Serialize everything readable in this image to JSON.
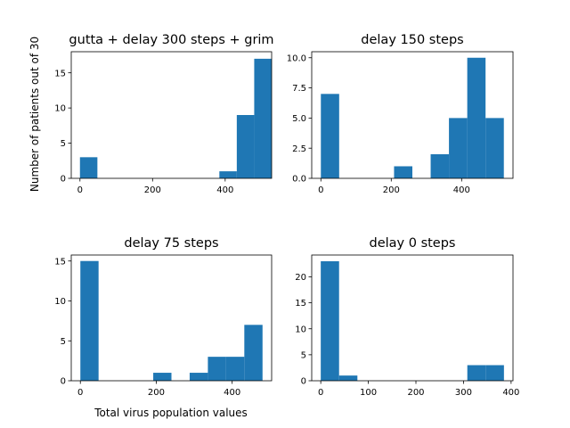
{
  "figure": {
    "ylabel": "Number of patients out of 30",
    "xlabel": "Total virus population values"
  },
  "chart_data": [
    {
      "type": "bar",
      "title": "gutta + delay 300 steps + grim",
      "bar_color": "#1f77b4",
      "bins": [
        {
          "start": 0,
          "end": 48,
          "count": 3
        },
        {
          "start": 48,
          "end": 96,
          "count": 0
        },
        {
          "start": 96,
          "end": 144,
          "count": 0
        },
        {
          "start": 144,
          "end": 192,
          "count": 0
        },
        {
          "start": 192,
          "end": 240,
          "count": 0
        },
        {
          "start": 240,
          "end": 288,
          "count": 0
        },
        {
          "start": 288,
          "end": 336,
          "count": 0
        },
        {
          "start": 336,
          "end": 384,
          "count": 0
        },
        {
          "start": 384,
          "end": 432,
          "count": 1
        },
        {
          "start": 432,
          "end": 480,
          "count": 9
        },
        {
          "start": 480,
          "end": 528,
          "count": 17
        }
      ],
      "xlim": [
        -24,
        528
      ],
      "ylim": [
        0,
        18
      ],
      "xticks": [
        0,
        200,
        400
      ],
      "yticks": [
        0,
        5,
        10,
        15
      ],
      "ytick_labels": [
        "0",
        "5",
        "10",
        "15"
      ]
    },
    {
      "type": "bar",
      "title": "delay 150 steps",
      "bar_color": "#1f77b4",
      "bins": [
        {
          "start": 0,
          "end": 52,
          "count": 7
        },
        {
          "start": 52,
          "end": 104,
          "count": 0
        },
        {
          "start": 104,
          "end": 156,
          "count": 0
        },
        {
          "start": 156,
          "end": 208,
          "count": 0
        },
        {
          "start": 208,
          "end": 260,
          "count": 1
        },
        {
          "start": 260,
          "end": 312,
          "count": 0
        },
        {
          "start": 312,
          "end": 364,
          "count": 2
        },
        {
          "start": 364,
          "end": 416,
          "count": 5
        },
        {
          "start": 416,
          "end": 468,
          "count": 10
        },
        {
          "start": 468,
          "end": 520,
          "count": 5
        }
      ],
      "xlim": [
        -26,
        546
      ],
      "ylim": [
        0,
        10.5
      ],
      "xticks": [
        0,
        200,
        400
      ],
      "yticks": [
        0,
        2.5,
        5,
        7.5,
        10
      ],
      "ytick_labels": [
        "0.0",
        "2.5",
        "5.0",
        "7.5",
        "10.0"
      ]
    },
    {
      "type": "bar",
      "title": "delay 75 steps",
      "bar_color": "#1f77b4",
      "bins": [
        {
          "start": 0,
          "end": 48,
          "count": 15
        },
        {
          "start": 48,
          "end": 96,
          "count": 0
        },
        {
          "start": 96,
          "end": 144,
          "count": 0
        },
        {
          "start": 144,
          "end": 192,
          "count": 0
        },
        {
          "start": 192,
          "end": 240,
          "count": 1
        },
        {
          "start": 240,
          "end": 288,
          "count": 0
        },
        {
          "start": 288,
          "end": 336,
          "count": 1
        },
        {
          "start": 336,
          "end": 384,
          "count": 3
        },
        {
          "start": 384,
          "end": 432,
          "count": 3
        },
        {
          "start": 432,
          "end": 480,
          "count": 7
        }
      ],
      "xlim": [
        -24,
        504
      ],
      "ylim": [
        0,
        15.75
      ],
      "xticks": [
        0,
        200,
        400
      ],
      "yticks": [
        0,
        5,
        10,
        15
      ],
      "ytick_labels": [
        "0",
        "5",
        "10",
        "15"
      ]
    },
    {
      "type": "bar",
      "title": "delay 0 steps",
      "bar_color": "#1f77b4",
      "bins": [
        {
          "start": 0,
          "end": 38.5,
          "count": 23
        },
        {
          "start": 38.5,
          "end": 77,
          "count": 1
        },
        {
          "start": 77,
          "end": 115.5,
          "count": 0
        },
        {
          "start": 115.5,
          "end": 154,
          "count": 0
        },
        {
          "start": 154,
          "end": 192.5,
          "count": 0
        },
        {
          "start": 192.5,
          "end": 231,
          "count": 0
        },
        {
          "start": 231,
          "end": 269.5,
          "count": 0
        },
        {
          "start": 269.5,
          "end": 308,
          "count": 0
        },
        {
          "start": 308,
          "end": 346.5,
          "count": 3
        },
        {
          "start": 346.5,
          "end": 385,
          "count": 3
        }
      ],
      "xlim": [
        -19,
        404
      ],
      "ylim": [
        0,
        24.2
      ],
      "xticks": [
        0,
        100,
        200,
        300,
        400
      ],
      "yticks": [
        0,
        5,
        10,
        15,
        20
      ],
      "ytick_labels": [
        "0",
        "5",
        "10",
        "15",
        "20"
      ]
    }
  ]
}
